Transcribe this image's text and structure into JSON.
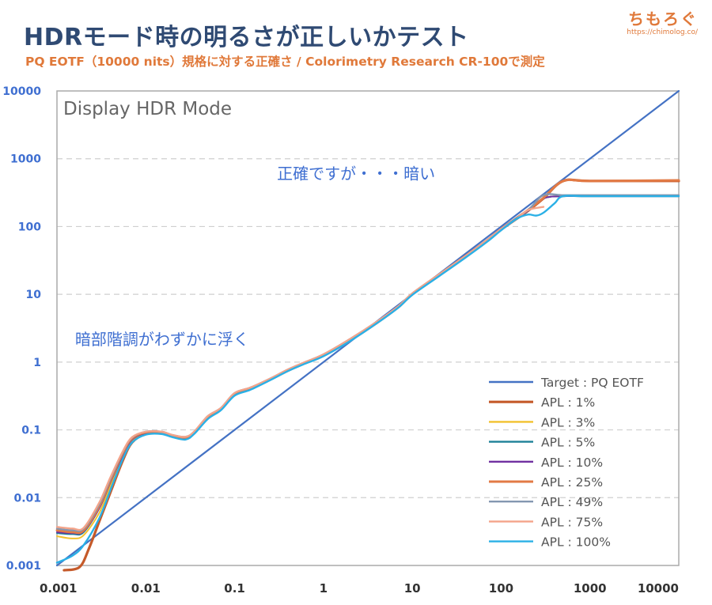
{
  "header": {
    "title": "HDRモード時の明るさが正しいかテスト",
    "subtitle": "PQ EOTF（10000 nits）規格に対する正確さ / Colorimetry Research CR-100で測定",
    "brand": "ちもろぐ",
    "brand_url": "https://chimolog.co/"
  },
  "chart_data": {
    "type": "line",
    "panel_label": "Display HDR Mode",
    "x_scale": "log",
    "y_scale": "log",
    "xlim": [
      0.001,
      10000
    ],
    "ylim": [
      0.001,
      10000
    ],
    "x_ticks": [
      "0.001",
      "0.01",
      "0.1",
      "1",
      "10",
      "100",
      "1000",
      "10000"
    ],
    "y_ticks": [
      "0.001",
      "0.01",
      "0.1",
      "1",
      "10",
      "100",
      "1000",
      "10000"
    ],
    "grid": "horizontal dashed",
    "legend_position": "bottom-right",
    "annotations": [
      {
        "text": "正確ですが・・・暗い",
        "x": 0.3,
        "y": 500
      },
      {
        "text": "暗部階調がわずかに浮く",
        "x": 0.0016,
        "y": 1.8
      }
    ],
    "series": [
      {
        "name": "Target : PQ EOTF",
        "color": "#4472c4",
        "width": 2.2,
        "points": [
          [
            0.001,
            0.001
          ],
          [
            10000,
            10000
          ]
        ]
      },
      {
        "name": "APL : 1%",
        "color": "#c55a2a",
        "width": 3.2,
        "points": [
          [
            0.0012,
            0.00085
          ],
          [
            0.0018,
            0.00095
          ],
          [
            0.0023,
            0.0018
          ],
          [
            0.003,
            0.0045
          ],
          [
            0.004,
            0.012
          ],
          [
            0.0055,
            0.035
          ],
          [
            0.007,
            0.065
          ],
          [
            0.01,
            0.088
          ],
          [
            0.015,
            0.09
          ],
          [
            0.02,
            0.08
          ],
          [
            0.028,
            0.075
          ],
          [
            0.035,
            0.09
          ],
          [
            0.05,
            0.15
          ],
          [
            0.07,
            0.2
          ],
          [
            0.1,
            0.33
          ],
          [
            0.15,
            0.4
          ],
          [
            0.25,
            0.55
          ],
          [
            0.4,
            0.75
          ],
          [
            0.6,
            0.95
          ],
          [
            1,
            1.25
          ],
          [
            2,
            2.1
          ],
          [
            4,
            3.8
          ],
          [
            7,
            6.5
          ],
          [
            10,
            10
          ],
          [
            20,
            19
          ],
          [
            40,
            36
          ],
          [
            70,
            62
          ],
          [
            100,
            90
          ],
          [
            200,
            170
          ],
          [
            300,
            260
          ],
          [
            500,
            470
          ],
          [
            1000,
            470
          ],
          [
            10000,
            470
          ]
        ]
      },
      {
        "name": "APL : 3%",
        "color": "#f2c12e",
        "width": 2,
        "points": [
          [
            0.001,
            0.0027
          ],
          [
            0.0015,
            0.0025
          ],
          [
            0.002,
            0.0028
          ],
          [
            0.003,
            0.006
          ],
          [
            0.004,
            0.015
          ],
          [
            0.0055,
            0.04
          ],
          [
            0.007,
            0.07
          ],
          [
            0.01,
            0.09
          ],
          [
            0.015,
            0.09
          ],
          [
            0.02,
            0.08
          ],
          [
            0.028,
            0.075
          ],
          [
            0.035,
            0.09
          ],
          [
            0.05,
            0.15
          ],
          [
            0.07,
            0.2
          ],
          [
            0.1,
            0.33
          ],
          [
            0.15,
            0.4
          ],
          [
            0.25,
            0.55
          ],
          [
            0.4,
            0.75
          ],
          [
            0.6,
            0.95
          ],
          [
            1,
            1.25
          ],
          [
            2,
            2.1
          ],
          [
            4,
            3.8
          ],
          [
            7,
            6.5
          ],
          [
            10,
            10
          ],
          [
            20,
            19
          ],
          [
            40,
            36
          ],
          [
            70,
            62
          ],
          [
            100,
            90
          ],
          [
            200,
            170
          ],
          [
            300,
            260
          ],
          [
            500,
            280
          ],
          [
            1000,
            280
          ],
          [
            10000,
            280
          ]
        ]
      },
      {
        "name": "APL : 5%",
        "color": "#1d8098",
        "width": 2,
        "points": [
          [
            0.001,
            0.003
          ],
          [
            0.0015,
            0.0029
          ],
          [
            0.002,
            0.0031
          ],
          [
            0.003,
            0.007
          ],
          [
            0.004,
            0.017
          ],
          [
            0.0055,
            0.042
          ],
          [
            0.007,
            0.072
          ],
          [
            0.01,
            0.09
          ],
          [
            0.015,
            0.09
          ],
          [
            0.02,
            0.08
          ],
          [
            0.028,
            0.075
          ],
          [
            0.035,
            0.09
          ],
          [
            0.05,
            0.15
          ],
          [
            0.07,
            0.2
          ],
          [
            0.1,
            0.33
          ],
          [
            0.15,
            0.4
          ],
          [
            0.25,
            0.55
          ],
          [
            0.4,
            0.75
          ],
          [
            0.6,
            0.95
          ],
          [
            1,
            1.25
          ],
          [
            2,
            2.1
          ],
          [
            4,
            3.8
          ],
          [
            7,
            6.5
          ],
          [
            10,
            10
          ],
          [
            20,
            19
          ],
          [
            40,
            36
          ],
          [
            70,
            62
          ],
          [
            100,
            90
          ],
          [
            200,
            170
          ],
          [
            300,
            260
          ],
          [
            500,
            280
          ],
          [
            1000,
            280
          ],
          [
            10000,
            280
          ]
        ]
      },
      {
        "name": "APL : 10%",
        "color": "#7030a0",
        "width": 2,
        "points": [
          [
            0.001,
            0.0031
          ],
          [
            0.0015,
            0.003
          ],
          [
            0.002,
            0.0032
          ],
          [
            0.003,
            0.007
          ],
          [
            0.004,
            0.017
          ],
          [
            0.0055,
            0.042
          ],
          [
            0.007,
            0.072
          ],
          [
            0.01,
            0.09
          ],
          [
            0.015,
            0.09
          ],
          [
            0.02,
            0.08
          ],
          [
            0.028,
            0.075
          ],
          [
            0.035,
            0.09
          ],
          [
            0.05,
            0.15
          ],
          [
            0.07,
            0.2
          ],
          [
            0.1,
            0.33
          ],
          [
            0.15,
            0.4
          ],
          [
            0.25,
            0.55
          ],
          [
            0.4,
            0.75
          ],
          [
            0.6,
            0.95
          ],
          [
            1,
            1.25
          ],
          [
            2,
            2.1
          ],
          [
            4,
            3.8
          ],
          [
            7,
            6.5
          ],
          [
            10,
            10
          ],
          [
            20,
            19
          ],
          [
            40,
            36
          ],
          [
            70,
            62
          ],
          [
            100,
            90
          ],
          [
            200,
            170
          ],
          [
            300,
            260
          ],
          [
            500,
            280
          ],
          [
            1000,
            280
          ],
          [
            10000,
            280
          ]
        ]
      },
      {
        "name": "APL : 25%",
        "color": "#e27a45",
        "width": 3,
        "points": [
          [
            0.001,
            0.0033
          ],
          [
            0.0015,
            0.0031
          ],
          [
            0.002,
            0.0033
          ],
          [
            0.003,
            0.0075
          ],
          [
            0.004,
            0.018
          ],
          [
            0.0055,
            0.045
          ],
          [
            0.007,
            0.075
          ],
          [
            0.01,
            0.092
          ],
          [
            0.015,
            0.092
          ],
          [
            0.02,
            0.082
          ],
          [
            0.028,
            0.077
          ],
          [
            0.035,
            0.092
          ],
          [
            0.05,
            0.155
          ],
          [
            0.07,
            0.205
          ],
          [
            0.1,
            0.34
          ],
          [
            0.15,
            0.41
          ],
          [
            0.25,
            0.56
          ],
          [
            0.4,
            0.77
          ],
          [
            0.6,
            0.97
          ],
          [
            1,
            1.28
          ],
          [
            2,
            2.15
          ],
          [
            4,
            3.9
          ],
          [
            7,
            6.6
          ],
          [
            10,
            10.2
          ],
          [
            20,
            19.5
          ],
          [
            40,
            37
          ],
          [
            70,
            63
          ],
          [
            100,
            92
          ],
          [
            200,
            175
          ],
          [
            300,
            265
          ],
          [
            500,
            470
          ],
          [
            1000,
            470
          ],
          [
            10000,
            480
          ]
        ]
      },
      {
        "name": "APL : 49%",
        "color": "#8497b0",
        "width": 2.4,
        "points": [
          [
            0.001,
            0.0035
          ],
          [
            0.0015,
            0.0033
          ],
          [
            0.002,
            0.0035
          ],
          [
            0.003,
            0.008
          ],
          [
            0.004,
            0.019
          ],
          [
            0.0055,
            0.047
          ],
          [
            0.007,
            0.077
          ],
          [
            0.01,
            0.094
          ],
          [
            0.015,
            0.094
          ],
          [
            0.02,
            0.084
          ],
          [
            0.028,
            0.079
          ],
          [
            0.035,
            0.094
          ],
          [
            0.05,
            0.16
          ],
          [
            0.07,
            0.21
          ],
          [
            0.1,
            0.35
          ],
          [
            0.15,
            0.42
          ],
          [
            0.25,
            0.57
          ],
          [
            0.4,
            0.78
          ],
          [
            0.6,
            0.98
          ],
          [
            1,
            1.3
          ],
          [
            2,
            2.2
          ],
          [
            4,
            3.95
          ],
          [
            7,
            6.7
          ],
          [
            10,
            10.3
          ],
          [
            20,
            19.6
          ],
          [
            40,
            37
          ],
          [
            70,
            63
          ],
          [
            100,
            92
          ],
          [
            200,
            175
          ],
          [
            300,
            290
          ],
          [
            500,
            290
          ],
          [
            1000,
            290
          ],
          [
            10000,
            290
          ]
        ]
      },
      {
        "name": "APL : 75%",
        "color": "#f4a48a",
        "width": 2.4,
        "points": [
          [
            0.001,
            0.0037
          ],
          [
            0.0015,
            0.0035
          ],
          [
            0.002,
            0.0036
          ],
          [
            0.003,
            0.0085
          ],
          [
            0.004,
            0.02
          ],
          [
            0.0055,
            0.048
          ],
          [
            0.007,
            0.078
          ],
          [
            0.01,
            0.094
          ],
          [
            0.015,
            0.094
          ],
          [
            0.02,
            0.084
          ],
          [
            0.028,
            0.079
          ],
          [
            0.035,
            0.094
          ],
          [
            0.05,
            0.16
          ],
          [
            0.07,
            0.21
          ],
          [
            0.1,
            0.35
          ],
          [
            0.15,
            0.42
          ],
          [
            0.25,
            0.57
          ],
          [
            0.4,
            0.78
          ],
          [
            0.6,
            0.98
          ],
          [
            1,
            1.3
          ],
          [
            2,
            2.2
          ],
          [
            4,
            3.95
          ],
          [
            7,
            6.7
          ],
          [
            10,
            10.3
          ],
          [
            20,
            19.6
          ],
          [
            40,
            37
          ],
          [
            70,
            63
          ],
          [
            100,
            92
          ],
          [
            150,
            130
          ],
          [
            200,
            175
          ],
          [
            300,
            195
          ]
        ]
      },
      {
        "name": "APL : 100%",
        "color": "#2ab0e6",
        "width": 2.4,
        "points": [
          [
            0.001,
            0.0011
          ],
          [
            0.0015,
            0.0014
          ],
          [
            0.002,
            0.002
          ],
          [
            0.003,
            0.005
          ],
          [
            0.004,
            0.013
          ],
          [
            0.0055,
            0.037
          ],
          [
            0.007,
            0.065
          ],
          [
            0.01,
            0.085
          ],
          [
            0.015,
            0.087
          ],
          [
            0.02,
            0.078
          ],
          [
            0.028,
            0.072
          ],
          [
            0.035,
            0.087
          ],
          [
            0.05,
            0.145
          ],
          [
            0.07,
            0.195
          ],
          [
            0.1,
            0.32
          ],
          [
            0.15,
            0.39
          ],
          [
            0.25,
            0.54
          ],
          [
            0.4,
            0.74
          ],
          [
            0.6,
            0.93
          ],
          [
            1,
            1.22
          ],
          [
            2,
            2.05
          ],
          [
            4,
            3.75
          ],
          [
            7,
            6.4
          ],
          [
            10,
            9.8
          ],
          [
            20,
            18.5
          ],
          [
            40,
            35
          ],
          [
            70,
            60
          ],
          [
            100,
            88
          ],
          [
            150,
            130
          ],
          [
            200,
            150
          ],
          [
            250,
            145
          ],
          [
            300,
            160
          ],
          [
            400,
            220
          ],
          [
            500,
            280
          ],
          [
            1000,
            280
          ],
          [
            10000,
            280
          ]
        ]
      }
    ]
  }
}
